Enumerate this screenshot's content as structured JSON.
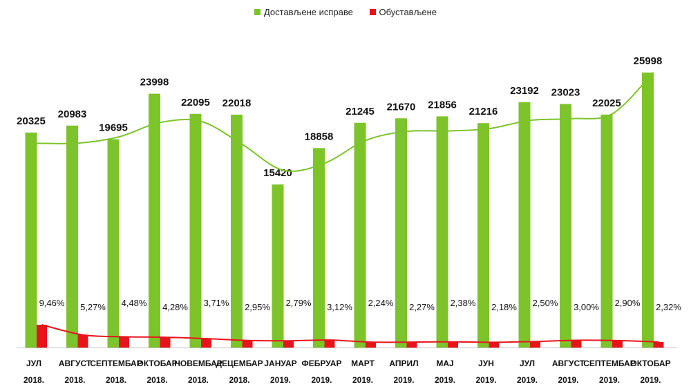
{
  "chart_data": {
    "type": "bar",
    "title": "",
    "xlabel": "",
    "ylabel": "",
    "legend_position": "top-center",
    "grid": false,
    "categories": [
      [
        "ЈУЛ",
        "2018."
      ],
      [
        "АВГУСТ",
        "2018."
      ],
      [
        "СЕПТЕМБАР",
        "2018."
      ],
      [
        "ОКТОБАР",
        "2018."
      ],
      [
        "НОВЕМБАР",
        "2018."
      ],
      [
        "ДЕЦЕМБАР",
        "2018."
      ],
      [
        "ЈАНУАР",
        "2019."
      ],
      [
        "ФЕБРУАР",
        "2019."
      ],
      [
        "МАРТ",
        "2019."
      ],
      [
        "АПРИЛ",
        "2019."
      ],
      [
        "МАЈ",
        "2019."
      ],
      [
        "ЈУН",
        "2019."
      ],
      [
        "ЈУЛ",
        "2019."
      ],
      [
        "АВГУСТ",
        "2019."
      ],
      [
        "СЕПТЕМБАР",
        "2019."
      ],
      [
        "ОКТОБАР",
        "2019."
      ]
    ],
    "series": [
      {
        "name": "Достављене исправе",
        "color": "#7cc42a",
        "values": [
          20325,
          20983,
          19695,
          23998,
          22095,
          22018,
          15420,
          18858,
          21245,
          21670,
          21856,
          21216,
          23192,
          23023,
          22025,
          25998
        ],
        "labels": [
          "20325",
          "20983",
          "19695",
          "23998",
          "22095",
          "22018",
          "15420",
          "18858",
          "21245",
          "21670",
          "21856",
          "21216",
          "23192",
          "23023",
          "22025",
          "25998"
        ]
      },
      {
        "name": "Обустављене",
        "color": "#e8141c",
        "values": [
          9.46,
          5.27,
          4.48,
          4.28,
          3.71,
          2.95,
          2.79,
          3.12,
          2.24,
          2.27,
          2.38,
          2.18,
          2.5,
          3.0,
          2.9,
          2.32
        ],
        "labels": [
          "9,46%",
          "5,27%",
          "4,48%",
          "4,28%",
          "3,71%",
          "2,95%",
          "2,79%",
          "3,12%",
          "2,24%",
          "2,27%",
          "2,38%",
          "2,18%",
          "2,50%",
          "3,00%",
          "2,90%",
          "2,32%"
        ]
      }
    ],
    "trend_lines": [
      {
        "series": "Достављене исправе",
        "color": "#7cc42a"
      },
      {
        "series": "Обустављене",
        "color": "#e8141c"
      }
    ],
    "ylim": [
      0,
      28000
    ]
  }
}
